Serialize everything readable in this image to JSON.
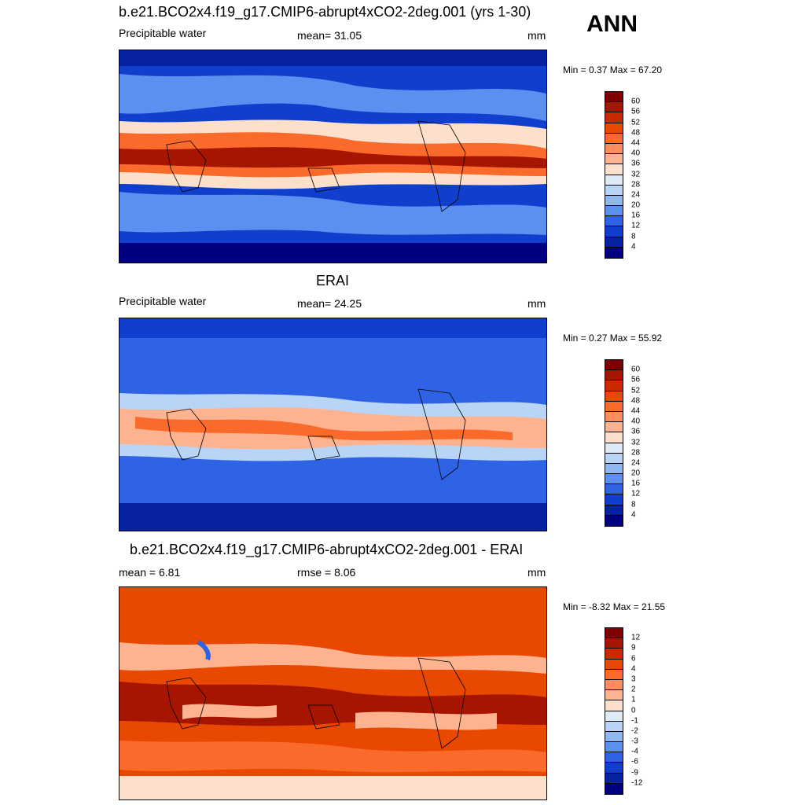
{
  "season": "ANN",
  "panels": [
    {
      "title": "b.e21.BCO2x4.f19_g17.CMIP6-abrupt4xCO2-2deg.001 (yrs 1-30)",
      "left_label": "Precipitable water",
      "center_label": "mean=  31.05",
      "units": "mm",
      "minmax": "Min =   0.37 Max =  67.20",
      "scale": "seq",
      "ticks": [
        "60",
        "56",
        "52",
        "48",
        "44",
        "40",
        "36",
        "32",
        "28",
        "24",
        "20",
        "16",
        "12",
        "8",
        "4"
      ]
    },
    {
      "title": "ERAI",
      "left_label": "Precipitable water",
      "center_label": "mean=  24.25",
      "units": "mm",
      "minmax": "Min =   0.27 Max =  55.92",
      "scale": "seq",
      "ticks": [
        "60",
        "56",
        "52",
        "48",
        "44",
        "40",
        "36",
        "32",
        "28",
        "24",
        "20",
        "16",
        "12",
        "8",
        "4"
      ]
    },
    {
      "title": "b.e21.BCO2x4.f19_g17.CMIP6-abrupt4xCO2-2deg.001 - ERAI",
      "left_label": "mean =   6.81",
      "center_label": "rmse =   8.06",
      "units": "mm",
      "minmax": "Min =  -8.32 Max =  21.55",
      "scale": "div",
      "ticks": [
        "12",
        "9",
        "6",
        "4",
        "3",
        "2",
        "1",
        "0",
        "-1",
        "-2",
        "-3",
        "-4",
        "-6",
        "-9",
        "-12"
      ]
    }
  ],
  "colors": {
    "seq": [
      "#7f0000",
      "#a61500",
      "#c92a00",
      "#e84800",
      "#fa6a2a",
      "#fd8d5c",
      "#fdb38f",
      "#fde0cc",
      "#deebf7",
      "#b9d5f5",
      "#8fb8f2",
      "#5b8ff0",
      "#2f63e6",
      "#0f3fcc",
      "#0622a3",
      "#000080"
    ],
    "div": [
      "#7f0000",
      "#a61500",
      "#c92a00",
      "#e84800",
      "#fa6a2a",
      "#fd8d5c",
      "#fdb38f",
      "#fde0cc",
      "#deebf7",
      "#b9d5f5",
      "#8fb8f2",
      "#5b8ff0",
      "#2f63e6",
      "#0f3fcc",
      "#0622a3",
      "#000080"
    ]
  }
}
